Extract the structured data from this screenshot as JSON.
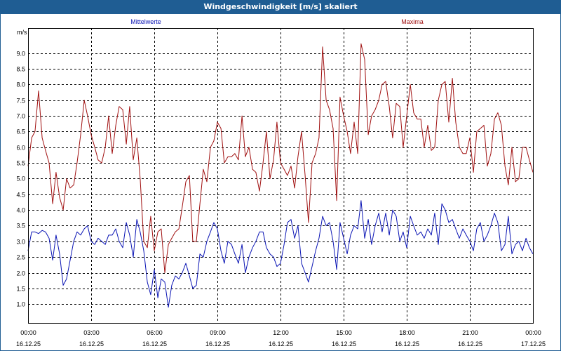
{
  "window": {
    "title": "Windgeschwindigkeit [m/s] skaliert"
  },
  "colors": {
    "titlebar": "#1f5d93",
    "mean": "#0a14b4",
    "max": "#a01010",
    "grid": "#000000"
  },
  "chart_data": {
    "type": "line",
    "title": "Windgeschwindigkeit [m/s] skaliert",
    "ylabel": "m/s",
    "xlabel": "",
    "ylim": [
      0.4,
      9.8
    ],
    "xlim": [
      0,
      24
    ],
    "grid": true,
    "y_ticks": [
      "1.0",
      "1.5",
      "2.0",
      "2.5",
      "3.0",
      "3.5",
      "4.0",
      "4.5",
      "5.0",
      "5.5",
      "6.0",
      "6.5",
      "7.0",
      "7.5",
      "8.0",
      "8.5",
      "9.0"
    ],
    "x_ticks": [
      {
        "time": "00:00",
        "date": "16.12.25",
        "hour": 0
      },
      {
        "time": "03:00",
        "date": "16.12.25",
        "hour": 3
      },
      {
        "time": "06:00",
        "date": "16.12.25",
        "hour": 6
      },
      {
        "time": "09:00",
        "date": "16.12.25",
        "hour": 9
      },
      {
        "time": "12:00",
        "date": "16.12.25",
        "hour": 12
      },
      {
        "time": "15:00",
        "date": "16.12.25",
        "hour": 15
      },
      {
        "time": "18:00",
        "date": "16.12.25",
        "hour": 18
      },
      {
        "time": "21:00",
        "date": "16.12.25",
        "hour": 21
      },
      {
        "time": "00:00",
        "date": "17.12.25",
        "hour": 24
      }
    ],
    "series": [
      {
        "name": "Mittelwerte",
        "color": "#0a14b4",
        "x": [
          0.0,
          0.17,
          0.33,
          0.5,
          0.67,
          0.83,
          1.0,
          1.17,
          1.33,
          1.5,
          1.67,
          1.83,
          2.0,
          2.17,
          2.33,
          2.5,
          2.67,
          2.83,
          3.0,
          3.17,
          3.33,
          3.5,
          3.67,
          3.83,
          4.0,
          4.17,
          4.33,
          4.5,
          4.67,
          4.83,
          5.0,
          5.17,
          5.33,
          5.5,
          5.67,
          5.83,
          6.0,
          6.17,
          6.33,
          6.5,
          6.67,
          6.83,
          7.0,
          7.17,
          7.33,
          7.5,
          7.67,
          7.83,
          8.0,
          8.17,
          8.33,
          8.5,
          8.67,
          8.83,
          9.0,
          9.17,
          9.33,
          9.5,
          9.67,
          9.83,
          10.0,
          10.17,
          10.33,
          10.5,
          10.67,
          10.83,
          11.0,
          11.17,
          11.33,
          11.5,
          11.67,
          11.83,
          12.0,
          12.17,
          12.33,
          12.5,
          12.67,
          12.83,
          13.0,
          13.17,
          13.33,
          13.5,
          13.67,
          13.83,
          14.0,
          14.17,
          14.33,
          14.5,
          14.67,
          14.83,
          15.0,
          15.17,
          15.33,
          15.5,
          15.67,
          15.83,
          16.0,
          16.17,
          16.33,
          16.5,
          16.67,
          16.83,
          17.0,
          17.17,
          17.33,
          17.5,
          17.67,
          17.83,
          18.0,
          18.17,
          18.33,
          18.5,
          18.67,
          18.83,
          19.0,
          19.17,
          19.33,
          19.5,
          19.67,
          19.83,
          20.0,
          20.17,
          20.33,
          20.5,
          20.67,
          20.83,
          21.0,
          21.17,
          21.33,
          21.5,
          21.67,
          21.83,
          22.0,
          22.17,
          22.33,
          22.5,
          22.67,
          22.83,
          23.0,
          23.17,
          23.33,
          23.5,
          23.67,
          23.83,
          24.0
        ],
        "values": [
          2.7,
          3.3,
          3.3,
          3.25,
          3.35,
          3.3,
          3.1,
          2.4,
          3.2,
          2.6,
          1.6,
          1.8,
          2.4,
          3.0,
          3.3,
          3.2,
          3.4,
          3.5,
          3.0,
          2.9,
          3.1,
          3.0,
          2.9,
          3.2,
          3.2,
          3.4,
          3.0,
          2.8,
          3.6,
          3.2,
          2.5,
          3.7,
          3.3,
          2.7,
          1.7,
          1.3,
          2.1,
          1.2,
          1.8,
          1.7,
          0.9,
          1.6,
          1.9,
          1.8,
          2.0,
          2.3,
          1.9,
          1.5,
          1.6,
          2.6,
          2.5,
          3.0,
          3.3,
          3.6,
          3.4,
          2.7,
          2.3,
          3.0,
          2.9,
          2.6,
          2.3,
          2.9,
          2.0,
          2.5,
          2.8,
          3.0,
          3.3,
          3.3,
          2.8,
          2.6,
          2.5,
          2.2,
          2.3,
          2.9,
          3.6,
          3.7,
          3.1,
          3.5,
          2.3,
          2.0,
          1.7,
          2.2,
          2.7,
          3.1,
          3.8,
          3.5,
          3.6,
          3.0,
          2.1,
          3.6,
          3.1,
          2.6,
          3.2,
          3.5,
          3.4,
          4.3,
          3.1,
          3.7,
          2.9,
          3.5,
          3.9,
          3.3,
          3.9,
          3.2,
          4.0,
          3.8,
          3.0,
          3.3,
          2.8,
          3.8,
          3.5,
          3.2,
          3.3,
          3.1,
          3.4,
          3.2,
          3.9,
          2.9,
          4.2,
          4.0,
          3.6,
          3.7,
          3.4,
          3.1,
          3.4,
          3.2,
          3.0,
          2.7,
          3.4,
          3.6,
          3.0,
          3.2,
          3.5,
          3.9,
          3.6,
          2.7,
          2.9,
          3.8,
          2.6,
          2.9,
          3.0,
          2.7,
          3.1,
          2.8,
          2.6
        ]
      },
      {
        "name": "Maxima",
        "color": "#a01010",
        "x": [
          0.0,
          0.17,
          0.33,
          0.5,
          0.67,
          0.83,
          1.0,
          1.17,
          1.33,
          1.5,
          1.67,
          1.83,
          2.0,
          2.17,
          2.33,
          2.5,
          2.67,
          2.83,
          3.0,
          3.17,
          3.33,
          3.5,
          3.67,
          3.83,
          4.0,
          4.17,
          4.33,
          4.5,
          4.67,
          4.83,
          5.0,
          5.17,
          5.33,
          5.5,
          5.67,
          5.83,
          6.0,
          6.17,
          6.33,
          6.5,
          6.67,
          6.83,
          7.0,
          7.17,
          7.33,
          7.5,
          7.67,
          7.83,
          8.0,
          8.17,
          8.33,
          8.5,
          8.67,
          8.83,
          9.0,
          9.17,
          9.33,
          9.5,
          9.67,
          9.83,
          10.0,
          10.17,
          10.33,
          10.5,
          10.67,
          10.83,
          11.0,
          11.17,
          11.33,
          11.5,
          11.67,
          11.83,
          12.0,
          12.17,
          12.33,
          12.5,
          12.67,
          12.83,
          13.0,
          13.17,
          13.33,
          13.5,
          13.67,
          13.83,
          14.0,
          14.17,
          14.33,
          14.5,
          14.67,
          14.83,
          15.0,
          15.17,
          15.33,
          15.5,
          15.67,
          15.83,
          16.0,
          16.17,
          16.33,
          16.5,
          16.67,
          16.83,
          17.0,
          17.17,
          17.33,
          17.5,
          17.67,
          17.83,
          18.0,
          18.17,
          18.33,
          18.5,
          18.67,
          18.83,
          19.0,
          19.17,
          19.33,
          19.5,
          19.67,
          19.83,
          20.0,
          20.17,
          20.33,
          20.5,
          20.67,
          20.83,
          21.0,
          21.17,
          21.33,
          21.5,
          21.67,
          21.83,
          22.0,
          22.17,
          22.33,
          22.5,
          22.67,
          22.83,
          23.0,
          23.17,
          23.33,
          23.5,
          23.67,
          23.83,
          24.0
        ],
        "values": [
          5.4,
          6.3,
          6.5,
          7.8,
          6.3,
          5.9,
          5.5,
          4.2,
          5.2,
          4.4,
          4.0,
          5.0,
          4.7,
          4.8,
          5.5,
          6.4,
          7.5,
          7.0,
          6.4,
          6.0,
          5.6,
          5.5,
          6.0,
          7.0,
          5.8,
          6.7,
          7.3,
          7.2,
          6.1,
          7.3,
          5.6,
          6.3,
          5.0,
          3.0,
          2.8,
          3.8,
          2.7,
          3.3,
          3.4,
          2.0,
          2.9,
          3.1,
          3.3,
          3.4,
          4.1,
          4.9,
          5.1,
          3.0,
          3.0,
          4.2,
          5.3,
          4.9,
          6.0,
          6.2,
          6.8,
          6.6,
          5.5,
          5.7,
          5.7,
          5.8,
          5.6,
          7.0,
          5.7,
          6.0,
          5.3,
          5.2,
          4.6,
          5.5,
          6.5,
          5.0,
          5.6,
          6.8,
          5.5,
          5.3,
          5.1,
          5.4,
          4.7,
          5.7,
          6.5,
          5.1,
          3.6,
          5.5,
          5.8,
          6.3,
          9.2,
          7.5,
          7.2,
          6.6,
          4.3,
          7.6,
          7.0,
          6.5,
          5.8,
          6.8,
          5.8,
          9.3,
          8.8,
          6.4,
          7.0,
          7.2,
          7.5,
          8.0,
          8.1,
          7.3,
          6.3,
          7.4,
          7.3,
          6.0,
          7.0,
          8.0,
          7.1,
          6.9,
          6.9,
          6.0,
          6.7,
          5.9,
          6.0,
          7.5,
          8.0,
          8.1,
          6.8,
          8.2,
          6.8,
          6.0,
          5.8,
          5.8,
          6.3,
          5.2,
          6.5,
          6.6,
          6.7,
          5.4,
          5.8,
          6.9,
          7.1,
          6.7,
          5.4,
          4.8,
          6.0,
          4.9,
          5.0,
          6.0,
          6.0,
          5.6,
          5.2
        ]
      }
    ]
  }
}
